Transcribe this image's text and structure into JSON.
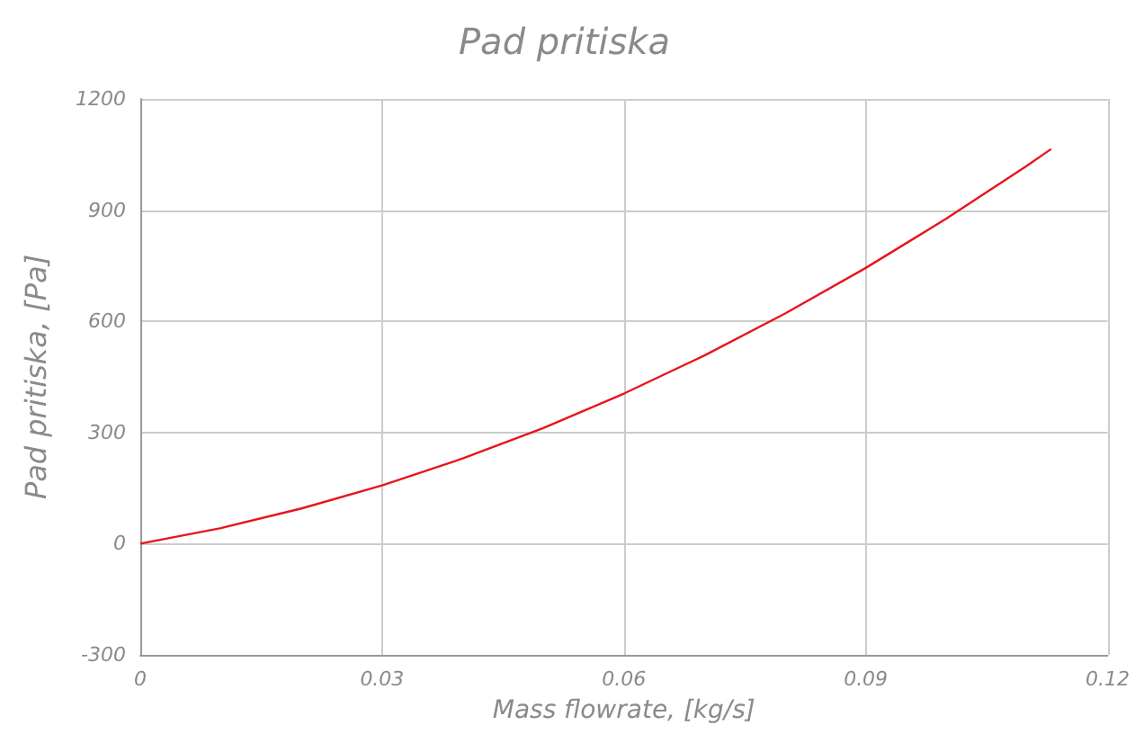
{
  "chart_data": {
    "type": "line",
    "title": "Pad pritiska",
    "xlabel": "Mass flowrate, [kg/s]",
    "ylabel": "Pad pritiska, [Pa]",
    "x": [
      0,
      0.01,
      0.02,
      0.03,
      0.04,
      0.05,
      0.06,
      0.07,
      0.08,
      0.09,
      0.1,
      0.11,
      0.113
    ],
    "series": [
      {
        "color": "#e8141c",
        "values": [
          0,
          42,
          95,
          157,
          230,
          312,
          405,
          508,
          621,
          744,
          877,
          1020,
          1065
        ]
      }
    ],
    "xlim": [
      0,
      0.12
    ],
    "xticks": [
      0,
      0.03,
      0.06,
      0.09,
      0.12
    ],
    "ylim": [
      -300,
      1200
    ],
    "yticks": [
      -300,
      0,
      300,
      600,
      900,
      1200
    ],
    "grid": true,
    "marker": "none",
    "line_style": "solid"
  }
}
